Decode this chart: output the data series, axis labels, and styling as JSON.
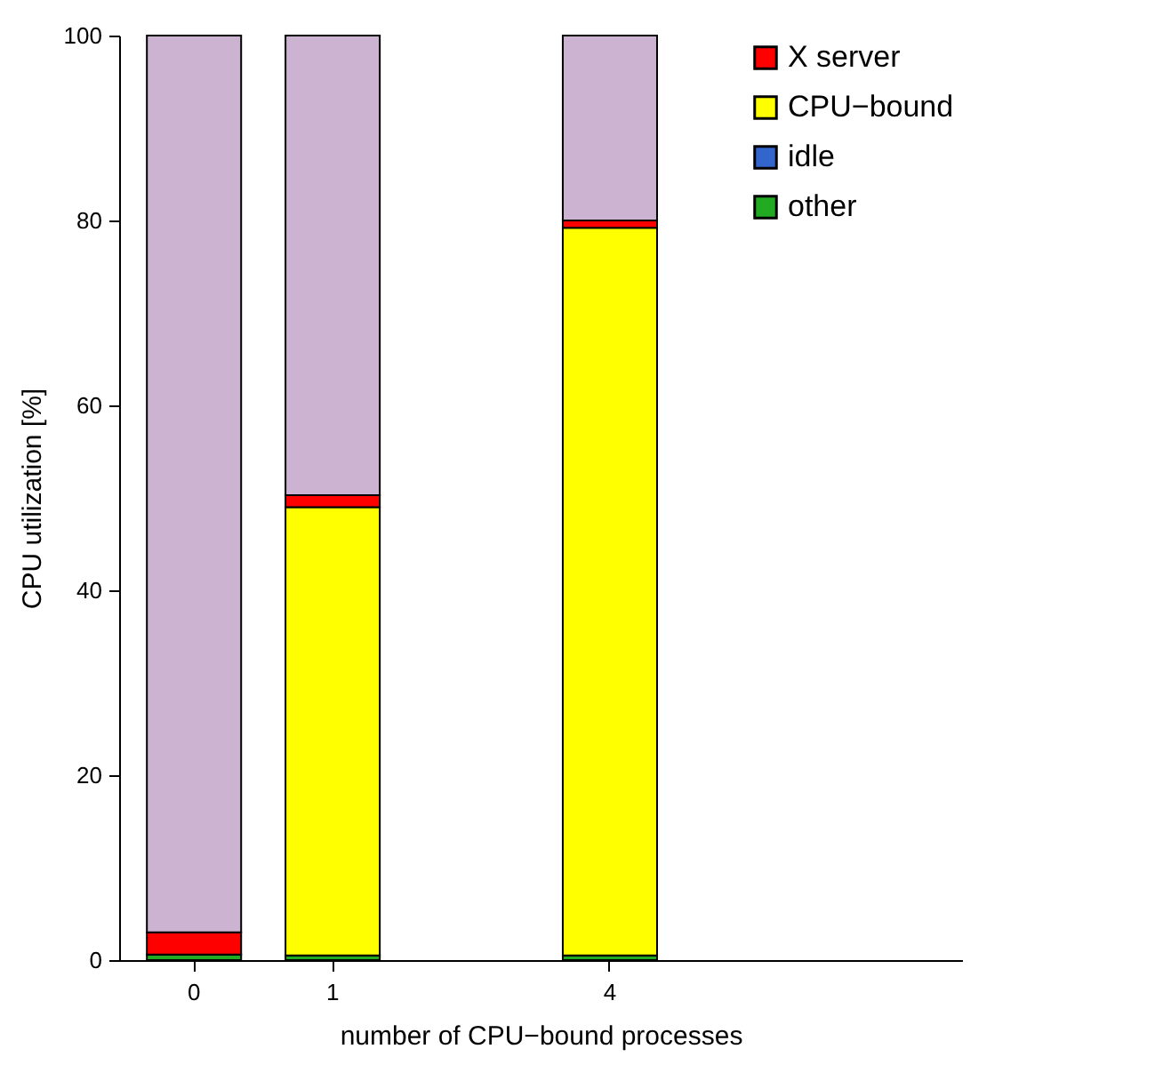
{
  "chart_data": {
    "type": "bar",
    "stacked": true,
    "xlabel": "number of CPU−bound processes",
    "ylabel": "CPU utilization [%]",
    "categories": [
      "0",
      "1",
      null,
      "4",
      null,
      null
    ],
    "ylim": [
      0,
      100
    ],
    "yticks": [
      0,
      20,
      40,
      60,
      80,
      100
    ],
    "grid": false,
    "legend": "top right",
    "series": [
      {
        "name": "other",
        "color": "#22aa22",
        "values": [
          0.6,
          0.5,
          null,
          0.5,
          null,
          null
        ]
      },
      {
        "name": "idle",
        "color": "#3366cc",
        "values": [
          0,
          0,
          null,
          0,
          null,
          null
        ]
      },
      {
        "name": "CPU−bound",
        "color": "#ffff00",
        "values": [
          0,
          48.5,
          null,
          78.7,
          null,
          null
        ]
      },
      {
        "name": "X server",
        "color": "#ff0000",
        "values": [
          2.4,
          1.3,
          null,
          0.8,
          null,
          null
        ]
      },
      {
        "color": "#ccb3d1",
        "values": [
          97,
          49.7,
          null,
          20,
          null,
          null
        ]
      }
    ]
  }
}
